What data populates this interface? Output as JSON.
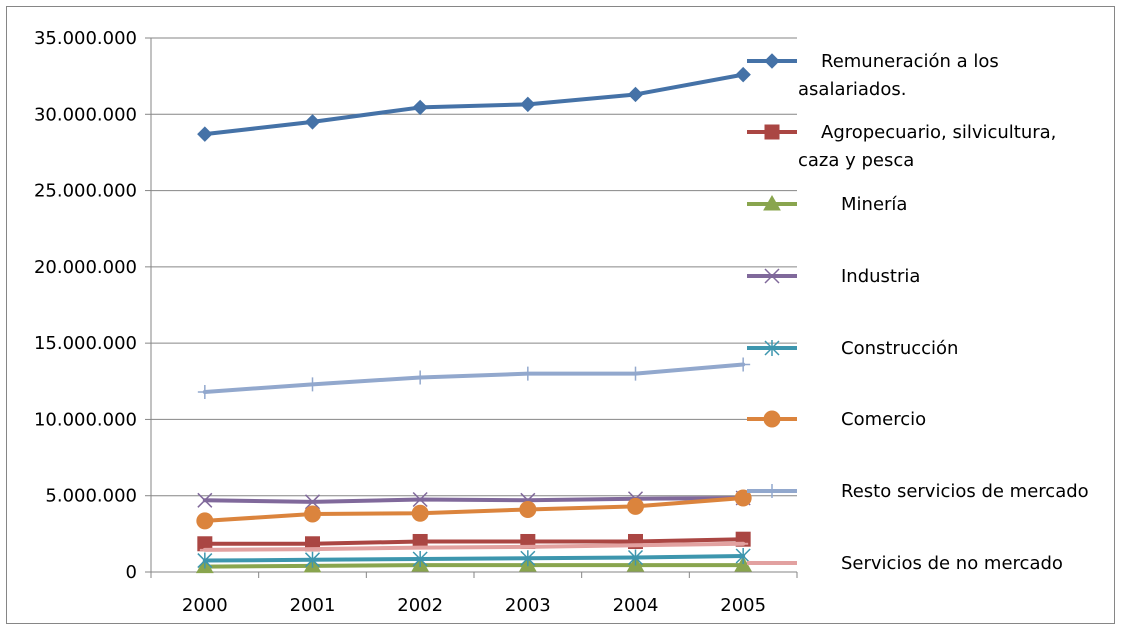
{
  "chart_data": {
    "type": "line",
    "categories": [
      "2000",
      "2001",
      "2002",
      "2003",
      "2004",
      "2005"
    ],
    "ylim": [
      0,
      35000000
    ],
    "ytick_values": [
      0,
      5000000,
      10000000,
      15000000,
      20000000,
      25000000,
      30000000,
      35000000
    ],
    "ytick_labels": [
      "0",
      "5.000.000",
      "10.000.000",
      "15.000.000",
      "20.000.000",
      "25.000.000",
      "30.000.000",
      "35.000.000"
    ],
    "grid": "horizontal",
    "legend_position": "right",
    "series": [
      {
        "name": "Remuneración a los asalariados.",
        "legend_lines": [
          "Remuneración a los",
          "asalariados."
        ],
        "color": "#4572A7",
        "marker": "diamond",
        "values": [
          28700000,
          29500000,
          30450000,
          30650000,
          31300000,
          32600000
        ]
      },
      {
        "name": "Agropecuario, silvicultura, caza y pesca",
        "legend_lines": [
          "Agropecuario, silvicultura,",
          "caza y pesca"
        ],
        "color": "#AA4643",
        "marker": "square",
        "values": [
          1850000,
          1850000,
          2000000,
          2000000,
          2000000,
          2150000
        ]
      },
      {
        "name": "Minería",
        "legend_lines": [
          "Minería"
        ],
        "color": "#89A54E",
        "marker": "triangle",
        "values": [
          350000,
          400000,
          450000,
          450000,
          450000,
          450000
        ]
      },
      {
        "name": "Industria",
        "legend_lines": [
          "Industria"
        ],
        "color": "#80699B",
        "marker": "x",
        "values": [
          4700000,
          4600000,
          4750000,
          4700000,
          4800000,
          4850000
        ]
      },
      {
        "name": "Construcción",
        "legend_lines": [
          "Construcción"
        ],
        "color": "#3D96AE",
        "marker": "star",
        "values": [
          750000,
          800000,
          850000,
          900000,
          950000,
          1050000
        ]
      },
      {
        "name": "Comercio",
        "legend_lines": [
          "Comercio"
        ],
        "color": "#DB843D",
        "marker": "circle",
        "values": [
          3350000,
          3800000,
          3850000,
          4100000,
          4300000,
          4850000
        ]
      },
      {
        "name": "Resto servicios de mercado",
        "legend_lines": [
          "Resto servicios de mercado"
        ],
        "color": "#92A8CD",
        "marker": "plus",
        "values": [
          11800000,
          12300000,
          12750000,
          13000000,
          13000000,
          13600000
        ]
      },
      {
        "name": "Servicios de no mercado",
        "legend_lines": [
          "Servicios de no mercado"
        ],
        "color": "#E2A1A0",
        "marker": "dash",
        "values": [
          1450000,
          1500000,
          1600000,
          1650000,
          1750000,
          1850000
        ]
      }
    ]
  }
}
